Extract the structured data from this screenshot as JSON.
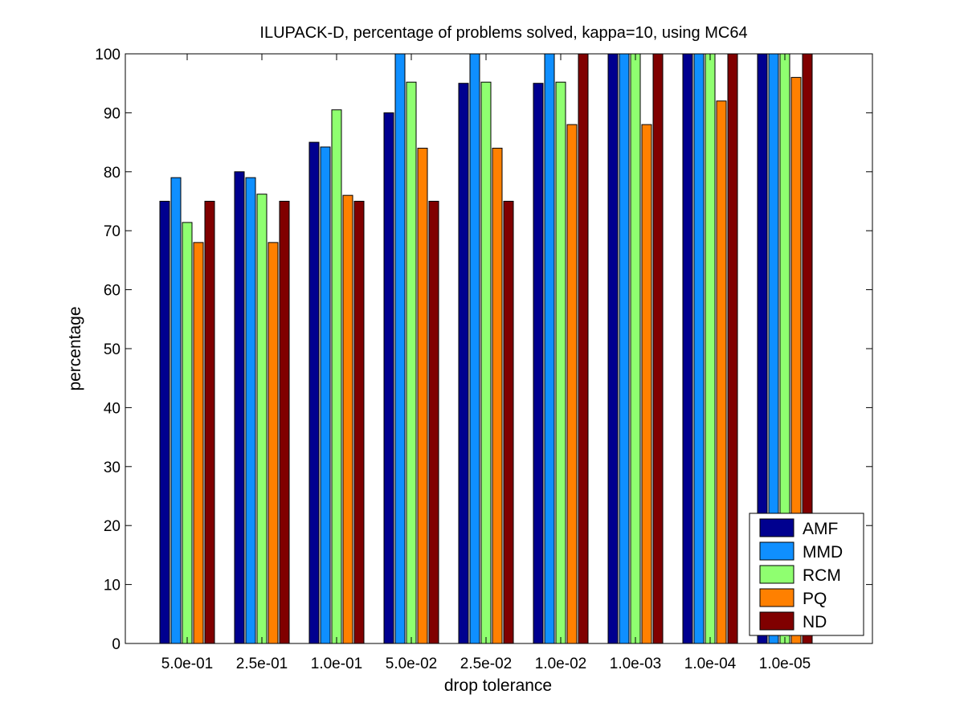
{
  "chart_data": {
    "type": "bar",
    "title": "ILUPACK-D, percentage of problems solved, kappa=10, using MC64",
    "xlabel": "drop tolerance",
    "ylabel": "percentage",
    "ylim": [
      0,
      100
    ],
    "yticks": [
      "0",
      "10",
      "20",
      "30",
      "40",
      "50",
      "60",
      "70",
      "80",
      "90",
      "100"
    ],
    "categories": [
      "5.0e-01",
      "2.5e-01",
      "1.0e-01",
      "5.0e-02",
      "2.5e-02",
      "1.0e-02",
      "1.0e-03",
      "1.0e-04",
      "1.0e-05"
    ],
    "series": [
      {
        "name": "AMF",
        "color": "#00008f",
        "values": [
          75,
          80,
          85,
          90,
          95,
          95,
          100,
          100,
          100
        ]
      },
      {
        "name": "MMD",
        "color": "#0f8fff",
        "values": [
          79,
          79,
          84.2,
          100,
          100,
          100,
          100,
          100,
          100
        ]
      },
      {
        "name": "RCM",
        "color": "#8fff70",
        "values": [
          71.4,
          76.2,
          90.5,
          95.2,
          95.2,
          95.2,
          100,
          100,
          100
        ]
      },
      {
        "name": "PQ",
        "color": "#ff8000",
        "values": [
          68,
          68,
          76,
          84,
          84,
          88,
          88,
          92,
          96
        ]
      },
      {
        "name": "ND",
        "color": "#800000",
        "values": [
          75,
          75,
          75,
          75,
          75,
          100,
          100,
          100,
          100
        ]
      }
    ],
    "legend_position": "bottom-right",
    "grid": false
  }
}
